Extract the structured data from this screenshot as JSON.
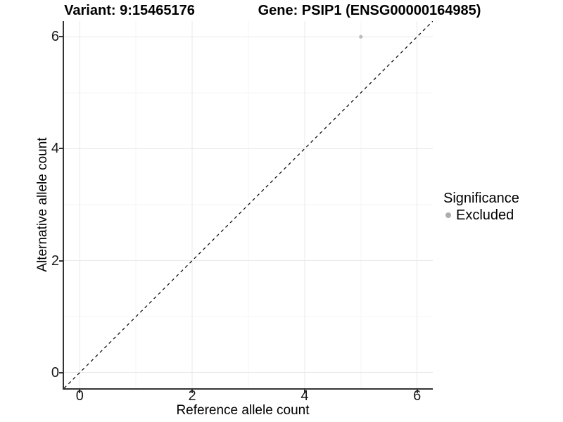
{
  "header": {
    "left_title": "Variant: 9:15465176",
    "right_title": "Gene: PSIP1 (ENSG00000164985)"
  },
  "chart_data": {
    "type": "scatter",
    "titles": [
      "Variant: 9:15465176",
      "Gene: PSIP1 (ENSG00000164985)"
    ],
    "xlabel": "Reference allele count",
    "ylabel": "Alternative allele count",
    "xlim": [
      -0.28,
      6.28
    ],
    "ylim": [
      -0.28,
      6.28
    ],
    "x_ticks": [
      0,
      2,
      4,
      6
    ],
    "y_ticks": [
      0,
      2,
      4,
      6
    ],
    "x_minor_gridlines": [
      1,
      3,
      5
    ],
    "y_minor_gridlines": [
      1,
      3,
      5
    ],
    "grid": "major and minor, light gray, on white background",
    "points": [
      {
        "x": 5,
        "y": 6,
        "series": "Excluded"
      }
    ],
    "reference_line": {
      "slope": 1,
      "intercept": 0,
      "style": "dashed",
      "color": "#000000"
    },
    "legend": {
      "title": "Significance",
      "position": "right",
      "entries": [
        {
          "label": "Excluded",
          "color": "#adadad"
        }
      ]
    },
    "colors": {
      "point": "#bdbdbd",
      "legend_key": "#adadad",
      "axis_line": "#333333",
      "grid_major": "#e8e8e8",
      "grid_minor": "#f4f4f4",
      "text": "#000000",
      "background": "#ffffff"
    }
  }
}
